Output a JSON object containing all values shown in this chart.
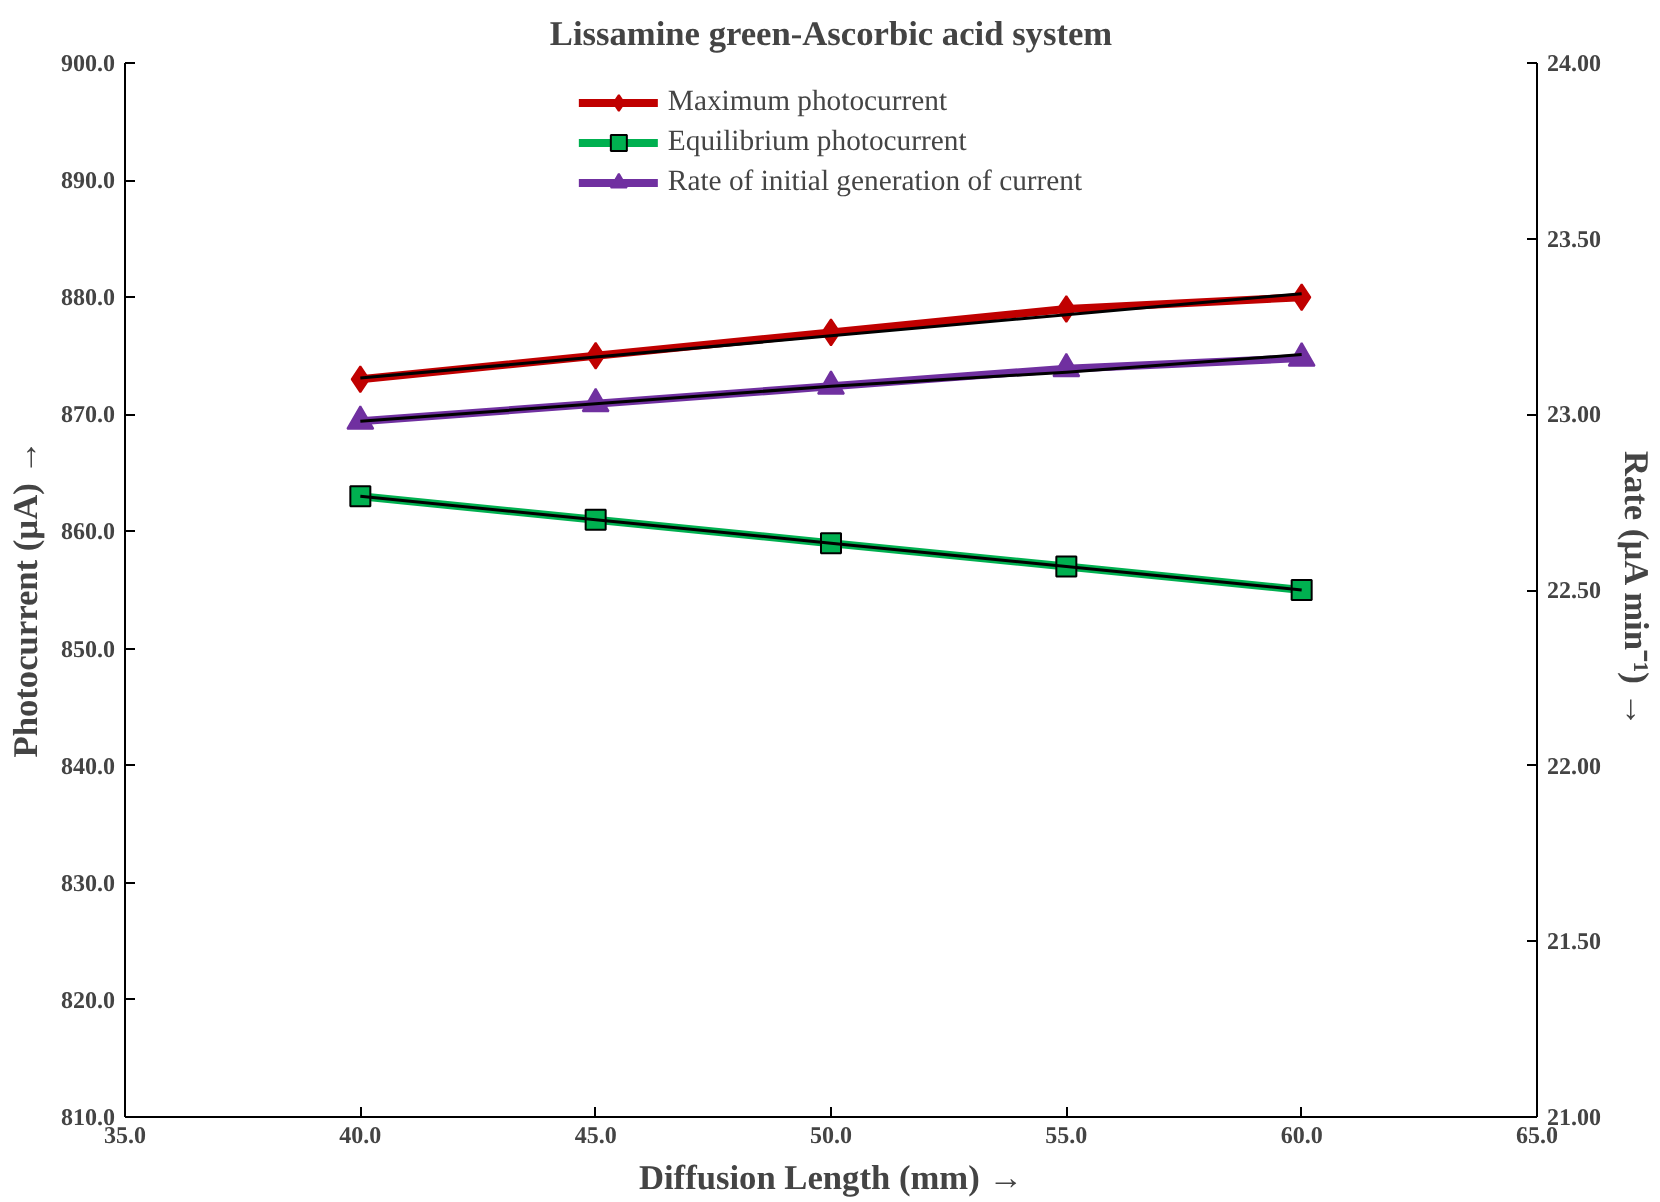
{
  "chart_data": {
    "type": "line",
    "title": "Lissamine green-Ascorbic acid system",
    "xlabel": "Diffusion Length (mm) →",
    "ylabel": "Photocurrent  (µA)  →",
    "y2label": "Rate (µA min⁻¹) →",
    "x": [
      40,
      45,
      50,
      55,
      60
    ],
    "series": [
      {
        "name": "Maximum photocurrent",
        "color": "#c00000",
        "marker": "diamond",
        "values": [
          873,
          875,
          877,
          879,
          880
        ]
      },
      {
        "name": "Equilibrium photocurrent",
        "color": "#00b050",
        "marker": "square",
        "values": [
          863,
          861,
          859,
          857,
          855
        ]
      },
      {
        "name": "Rate of initial generation of current",
        "color": "#7030a0",
        "marker": "triangle",
        "axis": "y2",
        "values": [
          22.98,
          23.03,
          23.08,
          23.13,
          23.16
        ]
      },
      {
        "type": "line",
        "color": "#000000",
        "marker": "none",
        "values": [
          873.1,
          874.9,
          876.7,
          878.5,
          880.3
        ]
      },
      {
        "type": "line",
        "color": "#000000",
        "marker": "none",
        "values": [
          863,
          861,
          859,
          857,
          855
        ]
      },
      {
        "type": "line",
        "color": "#000000",
        "marker": "none",
        "axis": "y2",
        "values": [
          22.98,
          23.03,
          23.08,
          23.12,
          23.17
        ]
      }
    ],
    "xlim": [
      35,
      65
    ],
    "xticks": [
      {
        "value": 35,
        "label": "35.0"
      },
      {
        "value": 40,
        "label": "40.0"
      },
      {
        "value": 45,
        "label": "45.0"
      },
      {
        "value": 50,
        "label": "50.0"
      },
      {
        "value": 55,
        "label": "55.0"
      },
      {
        "value": 60,
        "label": "60.0"
      },
      {
        "value": 65,
        "label": "65.0"
      }
    ],
    "ylim": [
      810,
      900
    ],
    "yticks": [
      {
        "value": 810,
        "label": "810.0"
      },
      {
        "value": 820,
        "label": "820.0"
      },
      {
        "value": 830,
        "label": "830.0"
      },
      {
        "value": 840,
        "label": "840.0"
      },
      {
        "value": 850,
        "label": "850.0"
      },
      {
        "value": 860,
        "label": "860.0"
      },
      {
        "value": 870,
        "label": "870.0"
      },
      {
        "value": 880,
        "label": "880.0"
      },
      {
        "value": 890,
        "label": "890.0"
      },
      {
        "value": 900,
        "label": "900.0"
      }
    ],
    "y2lim": [
      21,
      24
    ],
    "y2ticks": [
      {
        "value": 21,
        "label": "21.00"
      },
      {
        "value": 21.5,
        "label": "21.50"
      },
      {
        "value": 22,
        "label": "22.00"
      },
      {
        "value": 22.5,
        "label": "22.50"
      },
      {
        "value": 23,
        "label": "23.00"
      },
      {
        "value": 23.5,
        "label": "23.50"
      },
      {
        "value": 24,
        "label": "24.00"
      }
    ],
    "grid": false,
    "legend": "top",
    "line_style": "solid"
  }
}
